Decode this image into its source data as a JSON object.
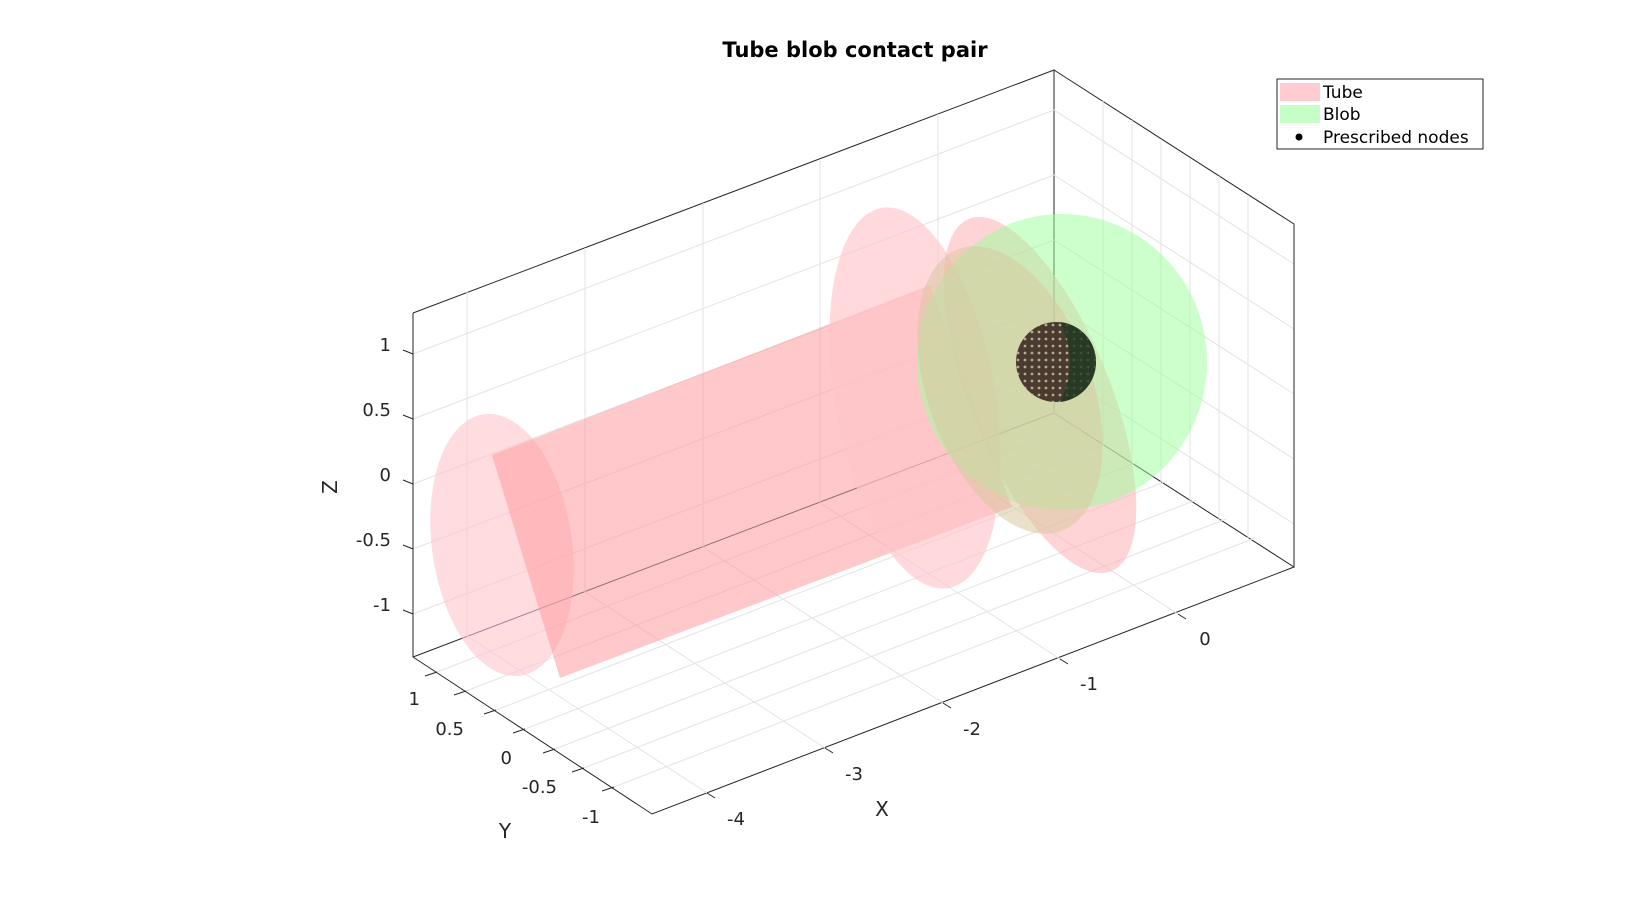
{
  "title": "Tube blob contact pair",
  "axes": {
    "x": {
      "label": "X",
      "ticks": [
        "-4",
        "-3",
        "-2",
        "-1",
        "0"
      ]
    },
    "y": {
      "label": "Y",
      "ticks": [
        "1",
        "0.5",
        "0",
        "-0.5",
        "-1"
      ]
    },
    "z": {
      "label": "Z",
      "ticks": [
        "1",
        "0.5",
        "0",
        "-0.5",
        "-1"
      ]
    }
  },
  "legend": {
    "placement": "top-right",
    "items": [
      {
        "label": "Tube",
        "color": "#ffc0c6",
        "kind": "patch"
      },
      {
        "label": "Blob",
        "color": "#b8ffb8",
        "kind": "patch"
      },
      {
        "label": "Prescribed nodes",
        "color": "#000000",
        "kind": "marker"
      }
    ]
  },
  "colors": {
    "tube": "#ff9a9f",
    "tube_cap": "#ffc4ca",
    "blob": "#99ff99",
    "nodes": "#1a1a1a",
    "grid": "#e6e6e6",
    "axis": "#262626"
  }
}
